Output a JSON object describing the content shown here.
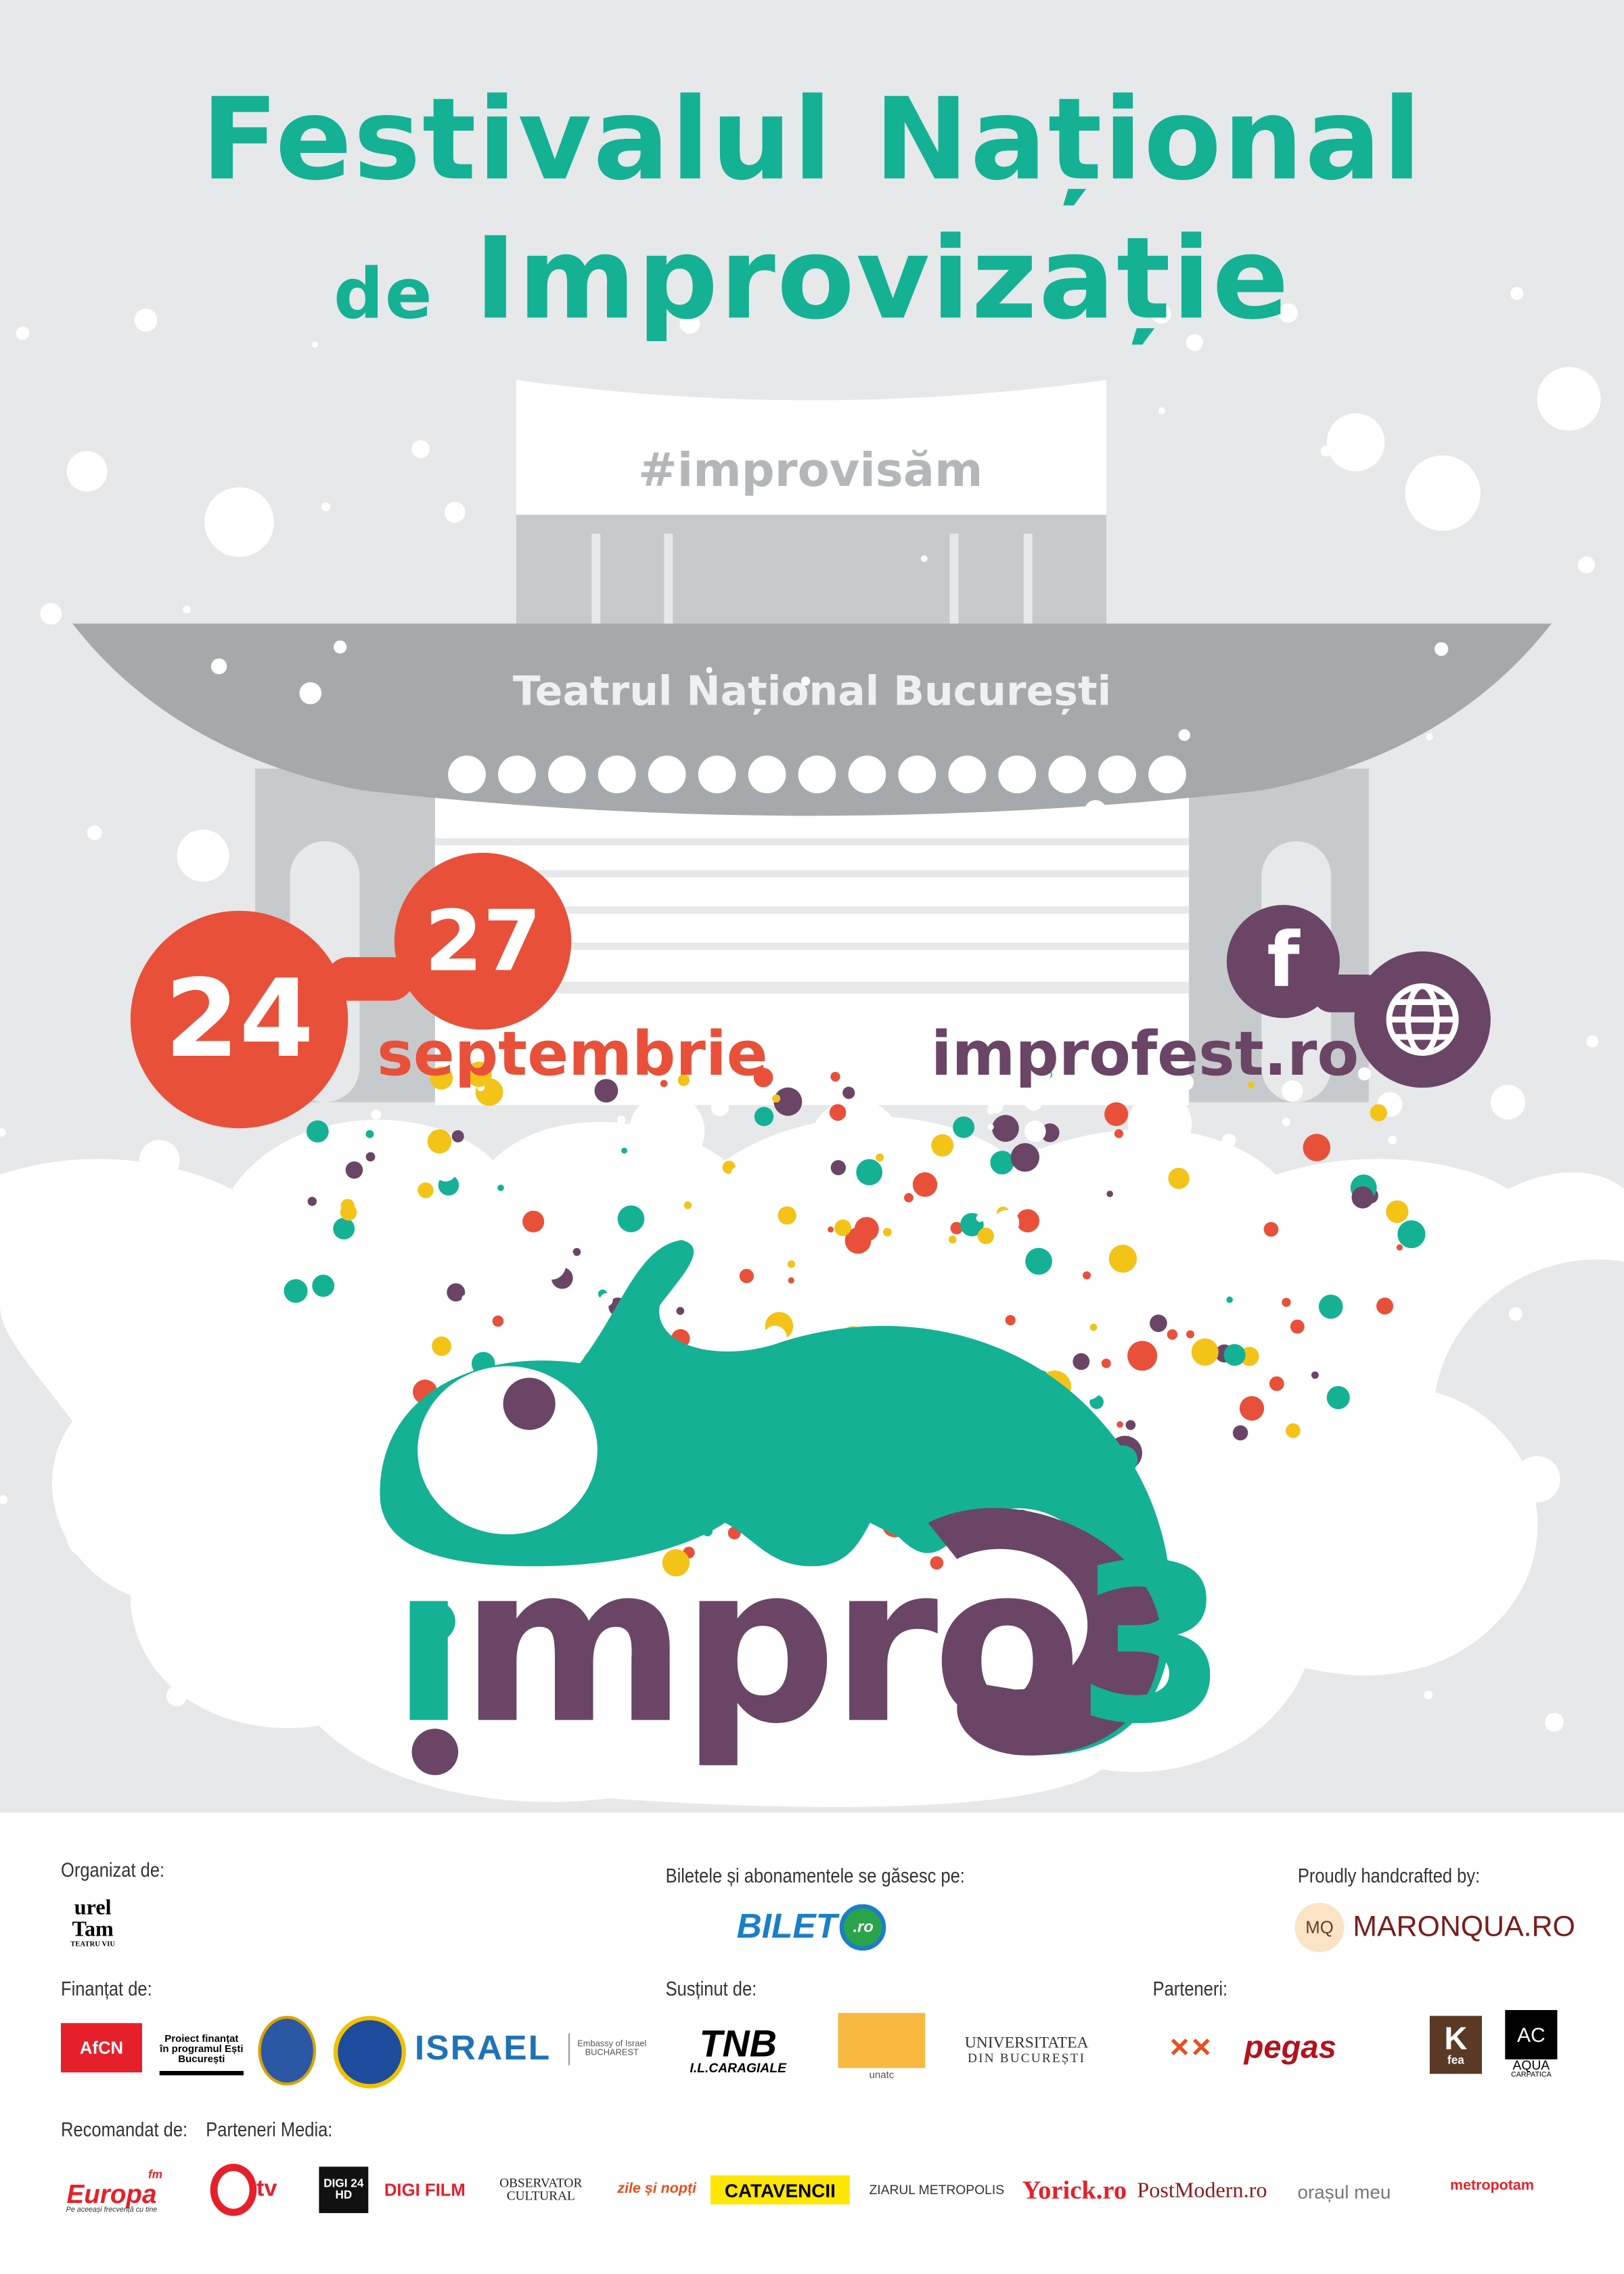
{
  "title": {
    "line1": "Festivalul Național",
    "line2_prefix": "de",
    "line2_main": "Improvizație"
  },
  "hashtag": "#improvisăm",
  "venue": "Teatrul Național București",
  "dates": {
    "start": "24",
    "end": "27",
    "month": "septembrie"
  },
  "website": {
    "url": "improfest.ro",
    "facebook_icon": "facebook-icon",
    "web_icon": "globe-icon",
    "facebook_glyph": "f"
  },
  "logo": {
    "text": "impro3",
    "mascot": "chameleon"
  },
  "colors": {
    "teal": "#14b194",
    "red": "#e8503a",
    "purple": "#6a4565",
    "yellow": "#f3c318",
    "gray": "#a6a9ac"
  },
  "footer": {
    "organized_by": {
      "label": "Organizat de:",
      "logos": [
        "unTeatru Teatru Viu"
      ],
      "logo_text": {
        "top": "urel",
        "bottom": "Tam",
        "caption": "TEATRU VIU"
      }
    },
    "tickets": {
      "label": "Biletele și abonamentele se găsesc pe:",
      "logo": "BILET",
      "logo_suffix": ".ro"
    },
    "crafted": {
      "label": "Proudly handcrafted by:",
      "logo_mark": "MQ",
      "logo": "MARONQUA.RO"
    },
    "funded_by": {
      "label": "Finanțat de:",
      "logos": [
        "AFCN",
        "Proiect finanțat în programul Ești București",
        "Primăria Municipiului București",
        "Embassy of the United States of America",
        "ISRAEL",
        "Embassy of Israel Bucharest"
      ],
      "afcn": "AfCN",
      "program_text": "Proiect finanțat în programul Ești București",
      "israel": "ISRAEL",
      "israel_embassy": "Embassy of Israel BUCHAREST"
    },
    "supported_by": {
      "label": "Susținut de:",
      "tnb": "TNB",
      "tnb_sub": "I.L.CARAGIALE",
      "unatc": "unatc",
      "univ": "UNIVERSITATEA",
      "univ_sub": "DIN BUCUREȘTI"
    },
    "partners": {
      "label": "Parteneri:",
      "pegas": "pegas",
      "kfea": "K",
      "kfea_sub": "fea",
      "aqua": "AC",
      "aqua_sub": "AQUA",
      "aqua_sub2": "CARPATICA"
    },
    "recommended_by": {
      "label": "Recomandat de:",
      "europa": "Europa",
      "europa_fm": "fm",
      "europa_sub": "Pe aceeași frecvență cu tine"
    },
    "media_partners": {
      "label": "Parteneri Media:",
      "logos": [
        "tv",
        "DIGI 24 HD",
        "DIGI FILM",
        "OBSERVATOR CULTURAL",
        "zile și nopți",
        "CATAVENCII",
        "ZIARUL METROPOLIS",
        "Yorick.ro",
        "PostModern.ro",
        "orașul meu",
        "metropotam"
      ]
    }
  }
}
